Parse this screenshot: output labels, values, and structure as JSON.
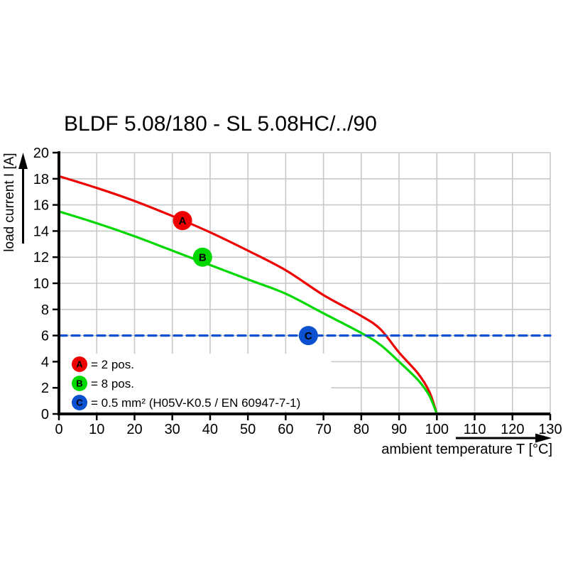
{
  "title": "BLDF 5.08/180 - SL 5.08HC/../90",
  "chart_data": {
    "type": "line",
    "title": "BLDF 5.08/180 - SL 5.08HC/../90",
    "xlabel": "ambient temperature T [°C]",
    "ylabel": "load current I [A]",
    "xlim": [
      0,
      130
    ],
    "ylim": [
      0,
      20
    ],
    "x_ticks": [
      0,
      10,
      20,
      30,
      40,
      50,
      60,
      70,
      80,
      90,
      100,
      110,
      120,
      130
    ],
    "y_ticks": [
      0,
      2,
      4,
      6,
      8,
      10,
      12,
      14,
      16,
      18,
      20
    ],
    "grid": true,
    "legend_position": "bottom-left-inside",
    "series": [
      {
        "name": "A",
        "legend_label": "= 2 pos.",
        "color": "#ee0000",
        "style": "solid",
        "points": [
          [
            0,
            18.2
          ],
          [
            10,
            17.3
          ],
          [
            20,
            16.3
          ],
          [
            30,
            15.15
          ],
          [
            40,
            13.9
          ],
          [
            50,
            12.5
          ],
          [
            60,
            11.0
          ],
          [
            70,
            9.1
          ],
          [
            80,
            7.5
          ],
          [
            85,
            6.5
          ],
          [
            90,
            4.7
          ],
          [
            95,
            3.1
          ],
          [
            98,
            1.7
          ],
          [
            100,
            0
          ]
        ],
        "marker": {
          "letter": "A",
          "x": 32.7,
          "y": 14.8
        }
      },
      {
        "name": "B",
        "legend_label": "= 8 pos.",
        "color": "#00d800",
        "style": "solid",
        "points": [
          [
            0,
            15.5
          ],
          [
            10,
            14.6
          ],
          [
            20,
            13.6
          ],
          [
            30,
            12.5
          ],
          [
            40,
            11.4
          ],
          [
            50,
            10.3
          ],
          [
            60,
            9.2
          ],
          [
            70,
            7.7
          ],
          [
            80,
            6.2
          ],
          [
            85,
            5.3
          ],
          [
            90,
            4.0
          ],
          [
            95,
            2.6
          ],
          [
            98,
            1.4
          ],
          [
            100,
            0
          ]
        ],
        "marker": {
          "letter": "B",
          "x": 38,
          "y": 12
        }
      },
      {
        "name": "C",
        "legend_label": "= 0.5 mm² (H05V-K0.5 / EN 60947-7-1)",
        "color": "#0b51d0",
        "style": "dashed",
        "points": [
          [
            0,
            6
          ],
          [
            130,
            6
          ]
        ],
        "marker": {
          "letter": "C",
          "x": 66,
          "y": 6
        }
      }
    ]
  },
  "colors": {
    "series_a": "#ee0000",
    "series_b": "#00d800",
    "series_c": "#0b51d0",
    "grid": "#c8c8c8",
    "axis": "#000000",
    "background": "#ffffff",
    "marker_letter": "#ffffff"
  }
}
